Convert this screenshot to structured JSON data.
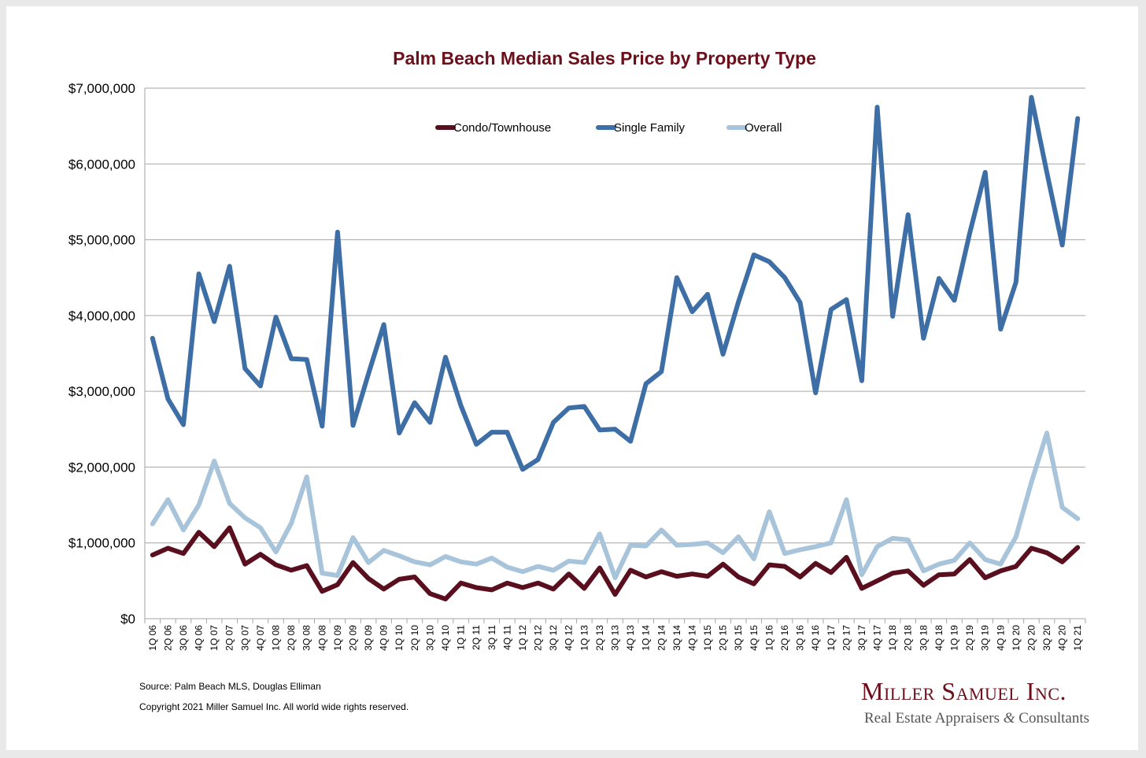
{
  "chart_data": {
    "type": "line",
    "title": "Palm Beach Median Sales Price by Property Type",
    "xlabel": "",
    "ylabel": "",
    "ylim": [
      0,
      7000000
    ],
    "yticks": [
      {
        "value": 0,
        "label": "$0"
      },
      {
        "value": 1000000,
        "label": "$1,000,000"
      },
      {
        "value": 2000000,
        "label": "$2,000,000"
      },
      {
        "value": 3000000,
        "label": "$3,000,000"
      },
      {
        "value": 4000000,
        "label": "$4,000,000"
      },
      {
        "value": 5000000,
        "label": "$5,000,000"
      },
      {
        "value": 6000000,
        "label": "$6,000,000"
      },
      {
        "value": 7000000,
        "label": "$7,000,000"
      }
    ],
    "grid": true,
    "legend_position": "top-center",
    "categories": [
      "1Q 06",
      "2Q 06",
      "3Q 06",
      "4Q 06",
      "1Q 07",
      "2Q 07",
      "3Q 07",
      "4Q 07",
      "1Q 08",
      "2Q 08",
      "3Q 08",
      "4Q 08",
      "1Q 09",
      "2Q 09",
      "3Q 09",
      "4Q 09",
      "1Q 10",
      "2Q 10",
      "3Q 10",
      "4Q 10",
      "1Q 11",
      "2Q 11",
      "3Q 11",
      "4Q 11",
      "1Q 12",
      "2Q 12",
      "3Q 12",
      "4Q 12",
      "1Q 13",
      "2Q 13",
      "3Q 13",
      "4Q 13",
      "1Q 14",
      "2Q 14",
      "3Q 14",
      "4Q 14",
      "1Q 15",
      "2Q 15",
      "3Q 15",
      "4Q 15",
      "1Q 16",
      "2Q 16",
      "3Q 16",
      "4Q 16",
      "1Q 17",
      "2Q 17",
      "3Q 17",
      "4Q 17",
      "1Q 18",
      "2Q 18",
      "3Q 18",
      "4Q 18",
      "1Q 19",
      "2Q 19",
      "3Q 19",
      "4Q 19",
      "1Q 20",
      "2Q 20",
      "3Q 20",
      "4Q 20",
      "1Q 21"
    ],
    "series": [
      {
        "name": "Condo/Townhouse",
        "color": "#5a0f1f",
        "values": [
          840000,
          930000,
          860000,
          1140000,
          950000,
          1200000,
          720000,
          850000,
          710000,
          640000,
          700000,
          360000,
          450000,
          740000,
          530000,
          390000,
          520000,
          550000,
          330000,
          260000,
          470000,
          410000,
          380000,
          470000,
          410000,
          470000,
          390000,
          590000,
          400000,
          670000,
          320000,
          640000,
          550000,
          620000,
          560000,
          590000,
          560000,
          720000,
          550000,
          460000,
          710000,
          690000,
          550000,
          730000,
          610000,
          810000,
          400000,
          500000,
          600000,
          630000,
          440000,
          580000,
          590000,
          780000,
          540000,
          630000,
          690000,
          930000,
          870000,
          750000,
          940000
        ]
      },
      {
        "name": "Single Family",
        "color": "#3e6ea6",
        "values": [
          3700000,
          2900000,
          2560000,
          4550000,
          3920000,
          4650000,
          3300000,
          3070000,
          3980000,
          3430000,
          3420000,
          2540000,
          5100000,
          2550000,
          3230000,
          3880000,
          2450000,
          2850000,
          2590000,
          3450000,
          2810000,
          2300000,
          2460000,
          2460000,
          1970000,
          2100000,
          2590000,
          2780000,
          2800000,
          2490000,
          2500000,
          2340000,
          3100000,
          3260000,
          4500000,
          4050000,
          4280000,
          3490000,
          4180000,
          4800000,
          4710000,
          4500000,
          4170000,
          2980000,
          4080000,
          4210000,
          3140000,
          6750000,
          3990000,
          5330000,
          3700000,
          4490000,
          4200000,
          5090000,
          5890000,
          3820000,
          4440000,
          6880000,
          5890000,
          4930000,
          6600000
        ]
      },
      {
        "name": "Overall",
        "color": "#a8c4da",
        "values": [
          1250000,
          1570000,
          1170000,
          1500000,
          2080000,
          1520000,
          1330000,
          1200000,
          880000,
          1260000,
          1870000,
          600000,
          570000,
          1070000,
          740000,
          900000,
          830000,
          750000,
          710000,
          820000,
          750000,
          720000,
          800000,
          680000,
          620000,
          690000,
          640000,
          760000,
          740000,
          1120000,
          540000,
          970000,
          960000,
          1170000,
          970000,
          980000,
          1000000,
          870000,
          1080000,
          790000,
          1410000,
          860000,
          910000,
          950000,
          1000000,
          1570000,
          580000,
          950000,
          1060000,
          1040000,
          630000,
          720000,
          770000,
          1000000,
          780000,
          720000,
          1080000,
          1800000,
          2450000,
          1470000,
          1320000
        ]
      }
    ]
  },
  "footer": {
    "source": "Source: Palm Beach MLS, Douglas Elliman",
    "copyright": "Copyright 2021 Miller Samuel Inc.  All world wide rights reserved."
  },
  "logo": {
    "name": "Miller Samuel Inc.",
    "tagline_part1": "Real Estate Appraisers ",
    "ampersand": "&",
    "tagline_part2": " Consultants"
  },
  "colors": {
    "title": "#6b0f1a",
    "background": "#ffffff",
    "outer_background": "#e9e9e9"
  }
}
